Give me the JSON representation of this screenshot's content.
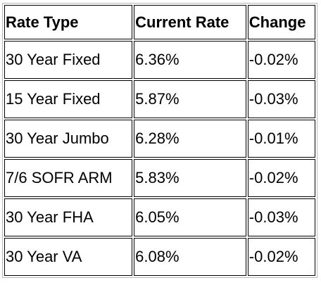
{
  "table": {
    "headers": [
      "Rate Type",
      "Current Rate",
      "Change"
    ],
    "rows": [
      [
        "30 Year Fixed",
        "6.36%",
        "-0.02%"
      ],
      [
        "15 Year Fixed",
        "5.87%",
        "-0.03%"
      ],
      [
        "30 Year Jumbo",
        "6.28%",
        "-0.01%"
      ],
      [
        "7/6 SOFR ARM",
        "5.83%",
        "-0.02%"
      ],
      [
        "30 Year FHA",
        "6.05%",
        "-0.03%"
      ],
      [
        "30 Year VA",
        "6.08%",
        "-0.02%"
      ]
    ]
  }
}
